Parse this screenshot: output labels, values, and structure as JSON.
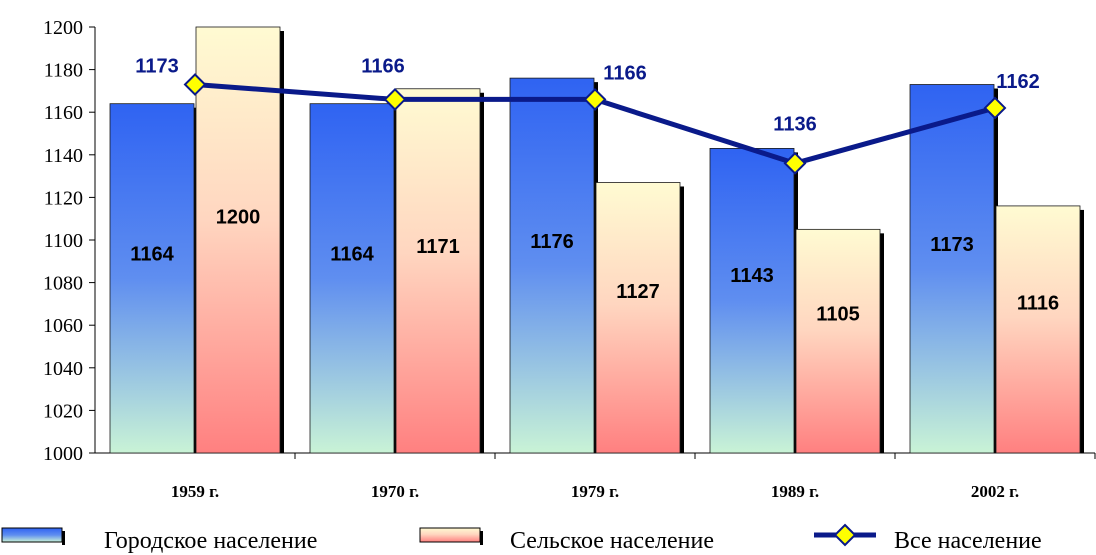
{
  "chart_data": {
    "type": "bar",
    "categories": [
      "1959 г.",
      "1970 г.",
      "1979 г.",
      "1989 г.",
      "2002 г."
    ],
    "series": [
      {
        "name": "Городское население",
        "kind": "bar",
        "values": [
          1164,
          1164,
          1176,
          1143,
          1173
        ],
        "color": "#3a6ff0"
      },
      {
        "name": "Сельское население",
        "kind": "bar",
        "values": [
          1200,
          1171,
          1127,
          1105,
          1116
        ],
        "color": "#fff8c0"
      },
      {
        "name": "Все население",
        "kind": "line",
        "values": [
          1173,
          1166,
          1166,
          1136,
          1162
        ],
        "color": "#0a1a8a",
        "marker_color": "#ffff00"
      }
    ],
    "ylim": [
      1000,
      1200
    ],
    "yticks": [
      1000,
      1020,
      1040,
      1060,
      1080,
      1100,
      1120,
      1140,
      1160,
      1180,
      1200
    ],
    "legend_position": "bottom",
    "grid": false
  }
}
